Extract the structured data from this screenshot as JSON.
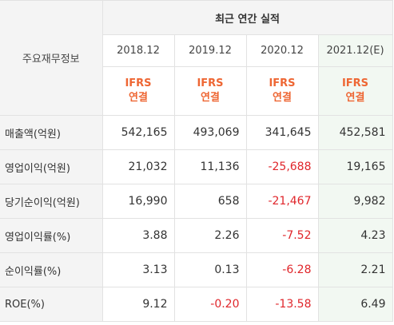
{
  "header": {
    "corner_label": "주요재무정보",
    "group_title": "최근 연간 실적",
    "years": [
      "2018.12",
      "2019.12",
      "2020.12",
      "2021.12(E)"
    ],
    "basis_top": "IFRS",
    "basis_bottom": "연결"
  },
  "colors": {
    "negative": "#e0262b",
    "basis": "#ee6633",
    "estimate_bg": "#f2f8f2",
    "header_bg": "#f4f4f4"
  },
  "rows": [
    {
      "label": "매출액(억원)",
      "values": [
        "542,165",
        "493,069",
        "341,645",
        "452,581"
      ]
    },
    {
      "label": "영업이익(억원)",
      "values": [
        "21,032",
        "11,136",
        "-25,688",
        "19,165"
      ]
    },
    {
      "label": "당기순이익(억원)",
      "values": [
        "16,990",
        "658",
        "-21,467",
        "9,982"
      ]
    },
    {
      "label": "영업이익률(%)",
      "values": [
        "3.88",
        "2.26",
        "-7.52",
        "4.23"
      ]
    },
    {
      "label": "순이익률(%)",
      "values": [
        "3.13",
        "0.13",
        "-6.28",
        "2.21"
      ]
    },
    {
      "label": "ROE(%)",
      "values": [
        "9.12",
        "-0.20",
        "-13.58",
        "6.49"
      ]
    }
  ]
}
